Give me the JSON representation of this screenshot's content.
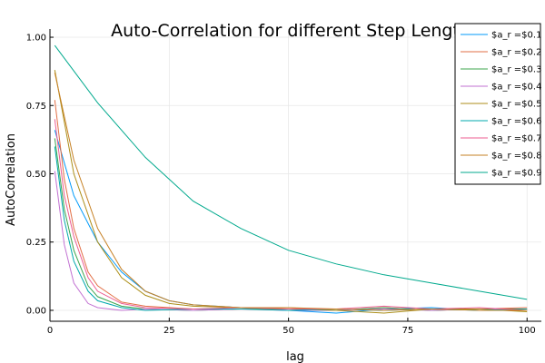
{
  "chart_data": {
    "type": "line",
    "title": "Auto-Correlation for different Step Lengths",
    "xlabel": "lag",
    "ylabel": "AutoCorrelation",
    "xlim": [
      0,
      103
    ],
    "ylim": [
      -0.04,
      1.03
    ],
    "xticks": [
      0,
      25,
      50,
      75,
      100
    ],
    "xtick_labels": [
      "0",
      "25",
      "50",
      "75",
      "100"
    ],
    "yticks": [
      0,
      0.25,
      0.5,
      0.75,
      1
    ],
    "ytick_labels": [
      "0.00",
      "0.25",
      "0.50",
      "0.75",
      "1.00"
    ],
    "grid": true,
    "legend_position": "top-right",
    "series": [
      {
        "name": "$a_r =$0.1",
        "color": "#009af9",
        "x": [
          1,
          5,
          10,
          15,
          20,
          25,
          30,
          40,
          50,
          60,
          70,
          80,
          90,
          100
        ],
        "y": [
          0.66,
          0.42,
          0.25,
          0.14,
          0.07,
          0.035,
          0.02,
          0.01,
          0.0,
          -0.01,
          0.005,
          0.01,
          0.0,
          0.0
        ]
      },
      {
        "name": "$a_r =$0.2",
        "color": "#e26f46",
        "x": [
          1,
          3,
          5,
          8,
          10,
          15,
          20,
          30,
          40,
          50,
          60,
          70,
          80,
          90,
          100
        ],
        "y": [
          0.77,
          0.48,
          0.3,
          0.14,
          0.09,
          0.03,
          0.015,
          0.005,
          0.005,
          0.01,
          0.0,
          0.01,
          0.0,
          0.005,
          0.01
        ]
      },
      {
        "name": "$a_r =$0.3",
        "color": "#3da44d",
        "x": [
          1,
          3,
          5,
          8,
          10,
          15,
          20,
          30,
          40,
          50,
          60,
          70,
          80,
          90,
          100
        ],
        "y": [
          0.63,
          0.37,
          0.22,
          0.09,
          0.05,
          0.015,
          0.005,
          0.0,
          0.005,
          0.005,
          0.0,
          0.01,
          0.0,
          0.005,
          0.005
        ]
      },
      {
        "name": "$a_r =$0.4",
        "color": "#c271d2",
        "x": [
          1,
          3,
          5,
          8,
          10,
          15,
          20,
          30,
          40,
          50,
          60,
          70,
          80,
          90,
          100
        ],
        "y": [
          0.51,
          0.24,
          0.1,
          0.025,
          0.01,
          0.0,
          0.005,
          0.0,
          0.005,
          0.0,
          0.0,
          0.005,
          0.0,
          0.005,
          0.0
        ]
      },
      {
        "name": "$a_r =$0.5",
        "color": "#ac8e18",
        "x": [
          1,
          5,
          10,
          15,
          20,
          25,
          30,
          40,
          50,
          60,
          70,
          80,
          90,
          100
        ],
        "y": [
          0.88,
          0.5,
          0.25,
          0.12,
          0.055,
          0.025,
          0.015,
          0.01,
          0.005,
          0.0,
          -0.01,
          0.005,
          0.005,
          -0.005
        ]
      },
      {
        "name": "$a_r =$0.6",
        "color": "#00a9ad",
        "x": [
          1,
          3,
          5,
          8,
          10,
          15,
          20,
          30,
          40,
          50,
          60,
          70,
          80,
          90,
          100
        ],
        "y": [
          0.6,
          0.33,
          0.18,
          0.07,
          0.035,
          0.01,
          0.0,
          0.005,
          0.005,
          0.0,
          0.005,
          0.0,
          0.005,
          0.0,
          0.005
        ]
      },
      {
        "name": "$a_r =$0.7",
        "color": "#ed5d92",
        "x": [
          1,
          3,
          5,
          8,
          10,
          15,
          20,
          30,
          40,
          50,
          60,
          70,
          80,
          90,
          100
        ],
        "y": [
          0.7,
          0.42,
          0.27,
          0.12,
          0.07,
          0.025,
          0.01,
          0.005,
          0.01,
          0.005,
          0.005,
          0.015,
          0.005,
          0.01,
          0.0
        ]
      },
      {
        "name": "$a_r =$0.8",
        "color": "#c68125",
        "x": [
          1,
          5,
          10,
          15,
          20,
          25,
          30,
          40,
          50,
          60,
          70,
          80,
          90,
          100
        ],
        "y": [
          0.87,
          0.55,
          0.3,
          0.15,
          0.07,
          0.035,
          0.02,
          0.01,
          0.01,
          0.005,
          0.0,
          0.005,
          0.0,
          0.0
        ]
      },
      {
        "name": "$a_r =$0.9",
        "color": "#00a98d",
        "x": [
          1,
          10,
          20,
          30,
          40,
          50,
          60,
          70,
          80,
          90,
          100
        ],
        "y": [
          0.97,
          0.76,
          0.56,
          0.4,
          0.3,
          0.22,
          0.17,
          0.13,
          0.1,
          0.07,
          0.04
        ]
      }
    ]
  }
}
